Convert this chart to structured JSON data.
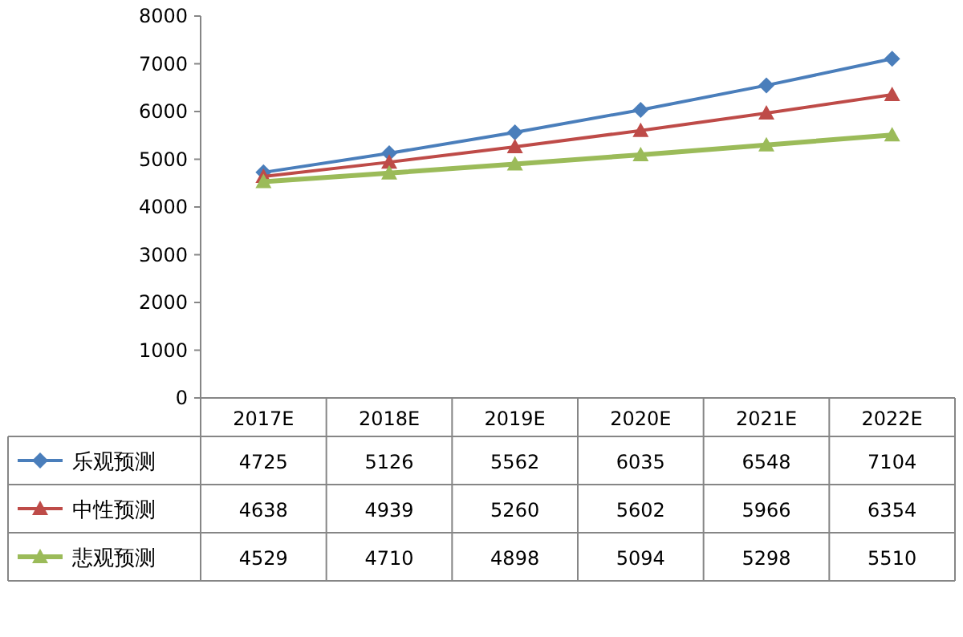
{
  "chart_data": {
    "type": "line",
    "categories": [
      "2017E",
      "2018E",
      "2019E",
      "2020E",
      "2021E",
      "2022E"
    ],
    "series": [
      {
        "name": "乐观预测",
        "color": "#4a7ebb",
        "marker": "diamond",
        "values": [
          4725,
          5126,
          5562,
          6035,
          6548,
          7104
        ]
      },
      {
        "name": "中性预测",
        "color": "#be4b48",
        "marker": "triangle",
        "values": [
          4638,
          4939,
          5260,
          5602,
          5966,
          6354
        ]
      },
      {
        "name": "悲观预测",
        "color": "#9bbb59",
        "marker": "triangle",
        "values": [
          4529,
          4710,
          4898,
          5094,
          5298,
          5510
        ]
      }
    ],
    "ylim": [
      0,
      8000
    ],
    "yticks": [
      0,
      1000,
      2000,
      3000,
      4000,
      5000,
      6000,
      7000,
      8000
    ],
    "data_labels": true,
    "legend": "bottom",
    "line_style": "solid"
  }
}
